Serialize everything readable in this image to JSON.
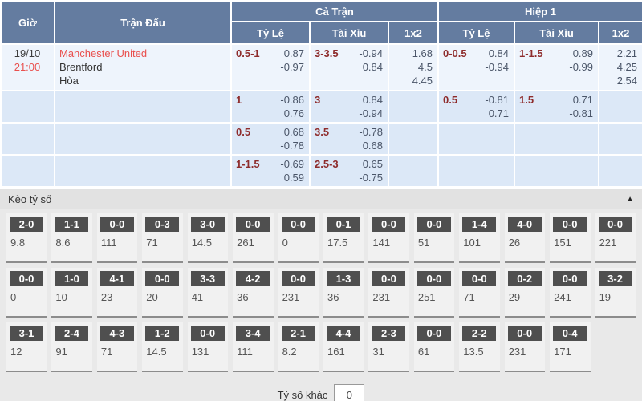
{
  "colors": {
    "header_bg": "#647ca0",
    "row_highlight_bg": "#eef4fc",
    "row_bg": "#dce8f7",
    "handicap_line_text": "#8e2c2c",
    "odds_text": "#4a5568",
    "home_team_red": "#e9504e",
    "tile_label_bg": "#4f4f4f",
    "section_bg": "#e9e9e9"
  },
  "table": {
    "headers": {
      "time": "Giờ",
      "match": "Trận Đấu",
      "full_time": "Cả Trận",
      "first_half": "Hiệp 1",
      "handicap": "Tỷ Lệ",
      "over_under": "Tài Xỉu",
      "one_x_two": "1x2"
    },
    "match": {
      "date": "19/10",
      "time": "21:00",
      "home": "Manchester United",
      "away": "Brentford",
      "draw": "Hòa"
    },
    "rows": [
      {
        "ft_handicap": {
          "line": "0.5-1",
          "odds": [
            "0.87",
            "-0.97"
          ]
        },
        "ft_over_under": {
          "line": "3-3.5",
          "odds": [
            "-0.94",
            "0.84"
          ]
        },
        "ft_1x2": [
          "1.68",
          "4.5",
          "4.45"
        ],
        "h1_handicap": {
          "line": "0-0.5",
          "odds": [
            "0.84",
            "-0.94"
          ]
        },
        "h1_over_under": {
          "line": "1-1.5",
          "odds": [
            "0.89",
            "-0.99"
          ]
        },
        "h1_1x2": [
          "2.21",
          "4.25",
          "2.54"
        ]
      },
      {
        "ft_handicap": {
          "line": "1",
          "odds": [
            "-0.86",
            "0.76"
          ]
        },
        "ft_over_under": {
          "line": "3",
          "odds": [
            "0.84",
            "-0.94"
          ]
        },
        "ft_1x2": [],
        "h1_handicap": {
          "line": "0.5",
          "odds": [
            "-0.81",
            "0.71"
          ]
        },
        "h1_over_under": {
          "line": "1.5",
          "odds": [
            "0.71",
            "-0.81"
          ]
        },
        "h1_1x2": []
      },
      {
        "ft_handicap": {
          "line": "0.5",
          "odds": [
            "0.68",
            "-0.78"
          ]
        },
        "ft_over_under": {
          "line": "3.5",
          "odds": [
            "-0.78",
            "0.68"
          ]
        },
        "ft_1x2": [],
        "h1_handicap": null,
        "h1_over_under": null,
        "h1_1x2": []
      },
      {
        "ft_handicap": {
          "line": "1-1.5",
          "odds": [
            "-0.69",
            "0.59"
          ]
        },
        "ft_over_under": {
          "line": "2.5-3",
          "odds": [
            "0.65",
            "-0.75"
          ]
        },
        "ft_1x2": [],
        "h1_handicap": null,
        "h1_over_under": null,
        "h1_1x2": []
      }
    ]
  },
  "score_section": {
    "title": "Kèo tỷ số",
    "collapse_icon": "▲",
    "rows": [
      [
        {
          "score": "2-0",
          "odds": "9.8"
        },
        {
          "score": "1-1",
          "odds": "8.6"
        },
        {
          "score": "0-0",
          "odds": "111"
        },
        {
          "score": "0-3",
          "odds": "71"
        },
        {
          "score": "3-0",
          "odds": "14.5"
        },
        {
          "score": "0-0",
          "odds": "261"
        },
        {
          "score": "0-0",
          "odds": "0"
        },
        {
          "score": "0-1",
          "odds": "17.5"
        },
        {
          "score": "0-0",
          "odds": "141"
        },
        {
          "score": "0-0",
          "odds": "51"
        },
        {
          "score": "1-4",
          "odds": "101"
        },
        {
          "score": "4-0",
          "odds": "26"
        },
        {
          "score": "0-0",
          "odds": "151"
        },
        {
          "score": "0-0",
          "odds": "221"
        }
      ],
      [
        {
          "score": "0-0",
          "odds": "0"
        },
        {
          "score": "1-0",
          "odds": "10"
        },
        {
          "score": "4-1",
          "odds": "23"
        },
        {
          "score": "0-0",
          "odds": "20"
        },
        {
          "score": "3-3",
          "odds": "41"
        },
        {
          "score": "4-2",
          "odds": "36"
        },
        {
          "score": "0-0",
          "odds": "231"
        },
        {
          "score": "1-3",
          "odds": "36"
        },
        {
          "score": "0-0",
          "odds": "231"
        },
        {
          "score": "0-0",
          "odds": "251"
        },
        {
          "score": "0-0",
          "odds": "71"
        },
        {
          "score": "0-2",
          "odds": "29"
        },
        {
          "score": "0-0",
          "odds": "241"
        },
        {
          "score": "3-2",
          "odds": "19"
        }
      ],
      [
        {
          "score": "3-1",
          "odds": "12"
        },
        {
          "score": "2-4",
          "odds": "91"
        },
        {
          "score": "4-3",
          "odds": "71"
        },
        {
          "score": "1-2",
          "odds": "14.5"
        },
        {
          "score": "0-0",
          "odds": "131"
        },
        {
          "score": "3-4",
          "odds": "111"
        },
        {
          "score": "2-1",
          "odds": "8.2"
        },
        {
          "score": "4-4",
          "odds": "161"
        },
        {
          "score": "2-3",
          "odds": "31"
        },
        {
          "score": "0-0",
          "odds": "61"
        },
        {
          "score": "2-2",
          "odds": "13.5"
        },
        {
          "score": "0-0",
          "odds": "231"
        },
        {
          "score": "0-4",
          "odds": "171"
        }
      ]
    ],
    "other_score_label": "Tỷ số khác",
    "other_score_value": "0"
  }
}
